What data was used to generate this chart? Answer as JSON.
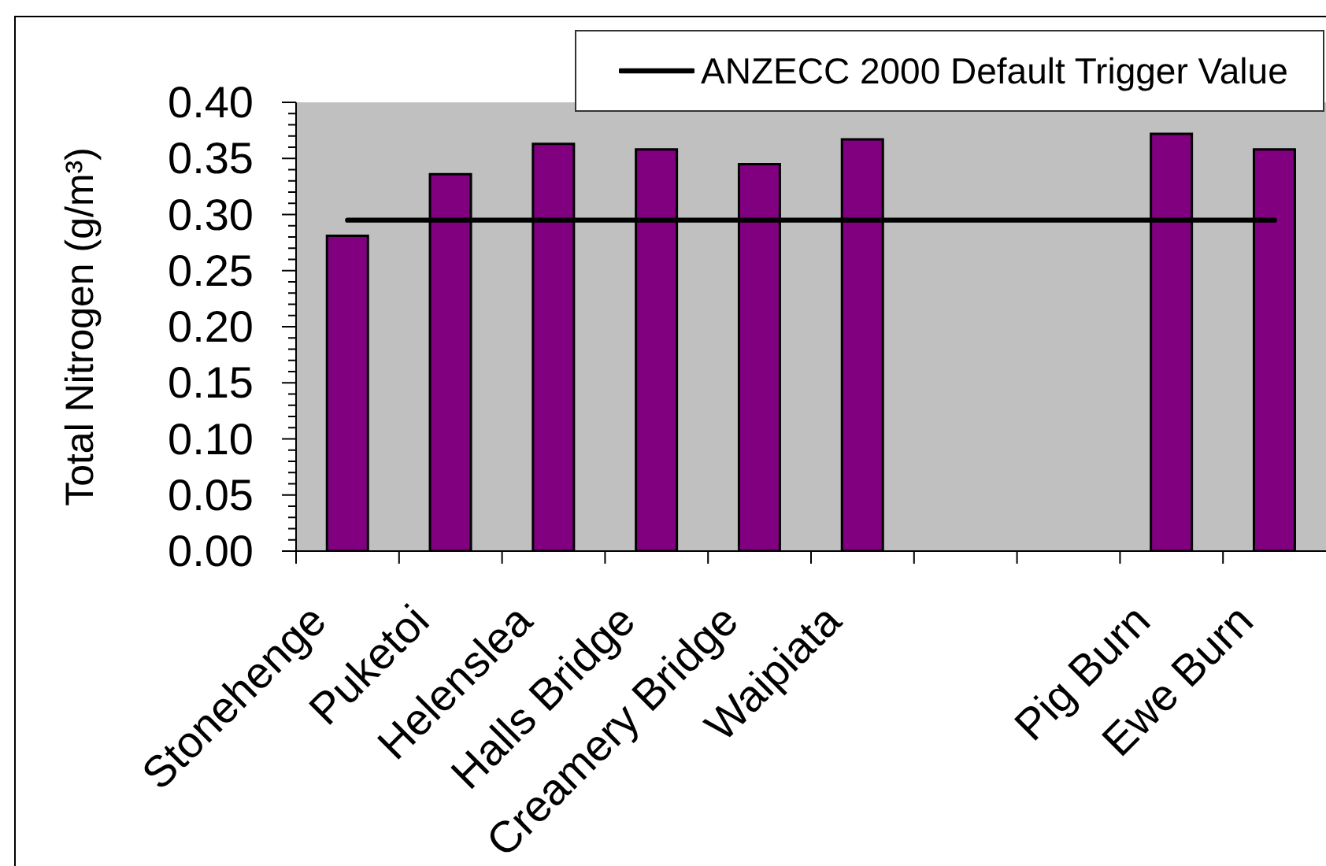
{
  "chart_data": {
    "type": "bar",
    "categories": [
      "Stonehenge",
      "Puketoi",
      "Helenslea",
      "Halls Bridge",
      "Creamery Bridge",
      "Waipiata",
      null,
      null,
      "Pig Burn",
      "Ewe Burn"
    ],
    "series": [
      {
        "color": "#800080",
        "values": [
          0.281,
          0.336,
          0.363,
          0.358,
          0.345,
          0.367,
          null,
          null,
          0.372,
          0.358
        ]
      },
      {
        "type": "line",
        "name": "ANZECC 2000 Default Trigger Value",
        "color": "#000000",
        "values": [
          0.295,
          0.295,
          0.295,
          0.295,
          0.295,
          0.295,
          0.295,
          0.295,
          0.295,
          0.295
        ]
      }
    ],
    "ylabel": "Total Nitrogen (g/m³)",
    "ylim": [
      0,
      0.4
    ],
    "yticks": [
      {
        "value": 0,
        "label": "0.00"
      },
      {
        "value": 0.01,
        "label": null
      },
      {
        "value": 0.02,
        "label": null
      },
      {
        "value": 0.03,
        "label": null
      },
      {
        "value": 0.04,
        "label": null
      },
      {
        "value": 0.05,
        "label": "0.05"
      },
      {
        "value": 0.06,
        "label": null
      },
      {
        "value": 0.07,
        "label": null
      },
      {
        "value": 0.08,
        "label": null
      },
      {
        "value": 0.09,
        "label": null
      },
      {
        "value": 0.1,
        "label": "0.10"
      },
      {
        "value": 0.11,
        "label": null
      },
      {
        "value": 0.12,
        "label": null
      },
      {
        "value": 0.13,
        "label": null
      },
      {
        "value": 0.14,
        "label": null
      },
      {
        "value": 0.15,
        "label": "0.15"
      },
      {
        "value": 0.16,
        "label": null
      },
      {
        "value": 0.17,
        "label": null
      },
      {
        "value": 0.18,
        "label": null
      },
      {
        "value": 0.19,
        "label": null
      },
      {
        "value": 0.2,
        "label": "0.20"
      },
      {
        "value": 0.21,
        "label": null
      },
      {
        "value": 0.22,
        "label": null
      },
      {
        "value": 0.23,
        "label": null
      },
      {
        "value": 0.24,
        "label": null
      },
      {
        "value": 0.25,
        "label": "0.25"
      },
      {
        "value": 0.26,
        "label": null
      },
      {
        "value": 0.27,
        "label": null
      },
      {
        "value": 0.28,
        "label": null
      },
      {
        "value": 0.29,
        "label": null
      },
      {
        "value": 0.3,
        "label": "0.30"
      },
      {
        "value": 0.31,
        "label": null
      },
      {
        "value": 0.32,
        "label": null
      },
      {
        "value": 0.33,
        "label": null
      },
      {
        "value": 0.34,
        "label": null
      },
      {
        "value": 0.35,
        "label": "0.35"
      },
      {
        "value": 0.36,
        "label": null
      },
      {
        "value": 0.37,
        "label": null
      },
      {
        "value": 0.38,
        "label": null
      },
      {
        "value": 0.39,
        "label": null
      },
      {
        "value": 0.4,
        "label": "0.40"
      }
    ],
    "legend": "top right",
    "marker": "none"
  }
}
